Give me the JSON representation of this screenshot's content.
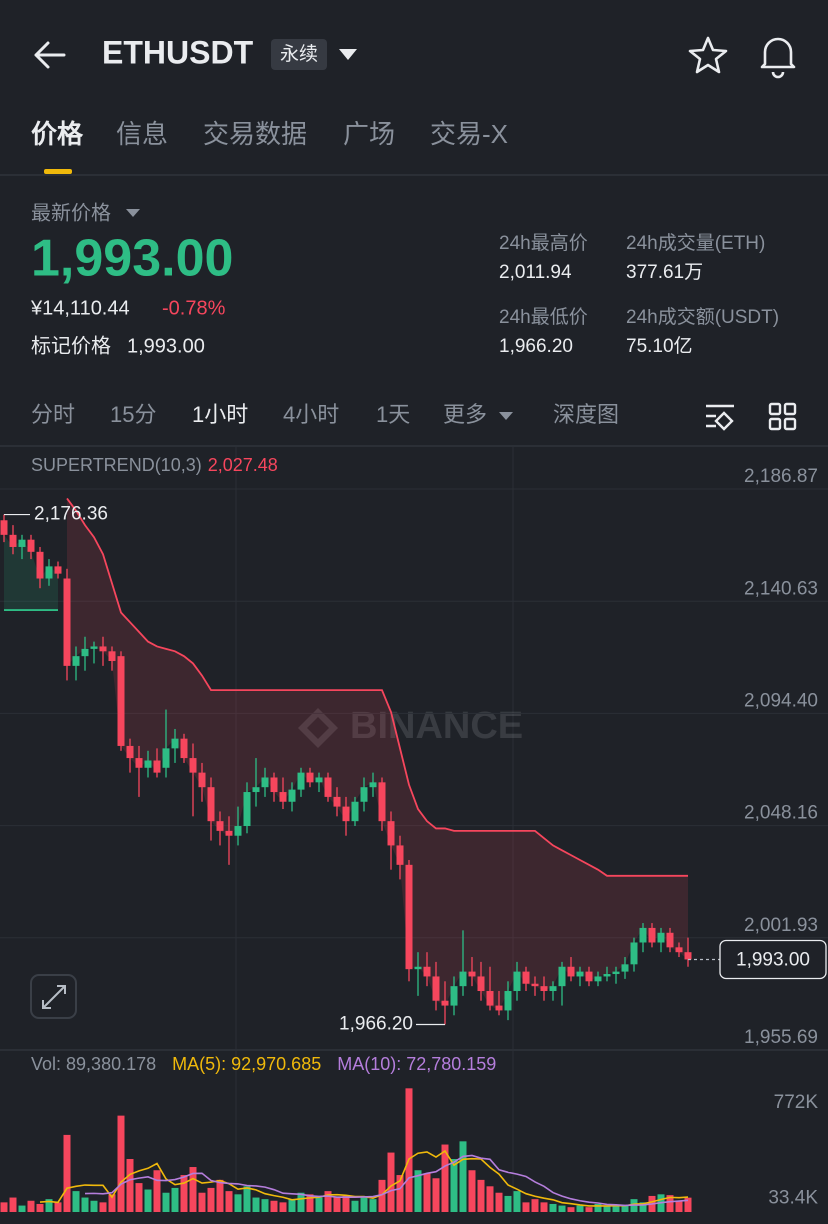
{
  "header": {
    "title": "ETHUSDT",
    "badge": "永续"
  },
  "tabs": [
    "价格",
    "信息",
    "交易数据",
    "广场",
    "交易-X"
  ],
  "price": {
    "label": "最新价格",
    "last": "1,993.00",
    "cny": "¥14,110.44",
    "change": "-0.78%",
    "mark_label": "标记价格",
    "mark": "1,993.00"
  },
  "stats": [
    {
      "label": "24h最高价",
      "value": "2,011.94"
    },
    {
      "label": "24h成交量(ETH)",
      "value": "377.61万"
    },
    {
      "label": "24h最低价",
      "value": "1,966.20"
    },
    {
      "label": "24h成交额(USDT)",
      "value": "75.10亿"
    }
  ],
  "timeframes": [
    "分时",
    "15分",
    "1小时",
    "4小时",
    "1天",
    "更多",
    "深度图"
  ],
  "watermark": "BINANCE",
  "chart_data": {
    "type": "candlestick",
    "up_color": "#2ebd85",
    "down_color": "#f6465d",
    "ylim": [
      1955.69,
      2204.2
    ],
    "yticks": [
      {
        "value": 2186.87,
        "label": "2,186.87"
      },
      {
        "value": 2140.63,
        "label": "2,140.63"
      },
      {
        "value": 2094.4,
        "label": "2,094.40"
      },
      {
        "value": 2048.16,
        "label": "2,048.16"
      },
      {
        "value": 2001.93,
        "label": "2,001.93"
      },
      {
        "value": 1955.69,
        "label": "1,955.69"
      }
    ],
    "grid": true,
    "candles": {
      "open": [
        2174,
        2168,
        2163,
        2166,
        2161,
        2150,
        2155,
        2150,
        2114,
        2118,
        2121,
        2122,
        2120,
        2118,
        2081,
        2076,
        2072,
        2075,
        2072,
        2080,
        2084,
        2076,
        2070,
        2064,
        2050,
        2046,
        2044,
        2048,
        2062,
        2064,
        2068,
        2062,
        2058,
        2063,
        2070,
        2066,
        2068,
        2060,
        2056,
        2050,
        2058,
        2064,
        2066,
        2050,
        2040,
        2032,
        1989,
        1990,
        1986,
        1976,
        1974,
        1982,
        1988,
        1986,
        1980,
        1974,
        1972,
        1980,
        1988,
        1983,
        1982,
        1980,
        1982,
        1990,
        1986,
        1988,
        1984,
        1986,
        1987,
        1988,
        1991,
        2000,
        2006,
        2000,
        2004,
        1998,
        1996
      ],
      "high": [
        2176.36,
        2172,
        2168,
        2168,
        2163,
        2158,
        2157,
        2154,
        2122,
        2126,
        2124,
        2126,
        2122,
        2120,
        2084,
        2081,
        2079,
        2080,
        2096,
        2088,
        2086,
        2082,
        2074,
        2068,
        2054,
        2052,
        2056,
        2066,
        2076,
        2072,
        2070,
        2068,
        2066,
        2072,
        2072,
        2070,
        2070,
        2064,
        2060,
        2060,
        2068,
        2070,
        2068,
        2054,
        2044,
        2034,
        1996,
        1996,
        1992,
        1984,
        1986,
        2005,
        1994,
        1992,
        1990,
        1980,
        1984,
        1992,
        1990,
        1986,
        1986,
        1984,
        1992,
        1994,
        1990,
        1990,
        1988,
        1990,
        1990,
        1994,
        2002,
        2008,
        2008,
        2006,
        2006,
        2000,
        2002
      ],
      "low": [
        2165,
        2160,
        2158,
        2158,
        2146,
        2147,
        2150,
        2108,
        2108,
        2112,
        2115,
        2114,
        2112,
        2079,
        2070,
        2060,
        2068,
        2068,
        2068,
        2074,
        2074,
        2052,
        2058,
        2042,
        2040,
        2032,
        2040,
        2045,
        2056,
        2060,
        2058,
        2055,
        2054,
        2060,
        2064,
        2062,
        2058,
        2052,
        2044,
        2048,
        2054,
        2060,
        2046,
        2030,
        2026,
        1984,
        1978,
        1982,
        1972,
        1966.2,
        1970,
        1978,
        1982,
        1976,
        1972,
        1970,
        1968,
        1976,
        1980,
        1978,
        1976,
        1976,
        1974,
        1984,
        1982,
        1982,
        1982,
        1984,
        1983,
        1985,
        1988,
        1996,
        1998,
        1996,
        1996,
        1994,
        1990
      ],
      "close": [
        2168,
        2163,
        2166,
        2161,
        2150,
        2155,
        2152,
        2114,
        2118,
        2121,
        2122,
        2120,
        2116,
        2081,
        2076,
        2072,
        2075,
        2070,
        2080,
        2084,
        2076,
        2070,
        2064,
        2050,
        2046,
        2044,
        2048,
        2062,
        2064,
        2068,
        2062,
        2058,
        2063,
        2070,
        2066,
        2068,
        2060,
        2056,
        2050,
        2058,
        2064,
        2066,
        2050,
        2040,
        2032,
        1989,
        1990,
        1986,
        1976,
        1974,
        1982,
        1988,
        1986,
        1980,
        1974,
        1972,
        1980,
        1988,
        1983,
        1982,
        1980,
        1982,
        1990,
        1986,
        1988,
        1984,
        1986,
        1987,
        1988,
        1991,
        2000,
        2006,
        2000,
        2004,
        1998,
        1996,
        1993
      ]
    },
    "supertrend": {
      "name": "SUPERTREND(10,3)",
      "value_label": "2,027.48",
      "values": [
        2137,
        2137,
        2137,
        2137,
        2137,
        2137,
        2137,
        2183,
        2178,
        2172,
        2167,
        2160,
        2148,
        2136,
        2132,
        2128,
        2124,
        2122,
        2121,
        2120,
        2118,
        2115,
        2110,
        2104,
        2104,
        2104,
        2104,
        2104,
        2104,
        2104,
        2104,
        2104,
        2104,
        2104,
        2104,
        2104,
        2104,
        2104,
        2104,
        2104,
        2104,
        2104,
        2104,
        2095,
        2080,
        2065,
        2055,
        2050,
        2047,
        2047,
        2046,
        2046,
        2046,
        2046,
        2046,
        2046,
        2046,
        2046,
        2046,
        2046,
        2043,
        2040,
        2038,
        2036,
        2034,
        2032,
        2030,
        2027.48,
        2027.48,
        2027.48,
        2027.48,
        2027.48,
        2027.48,
        2027.48,
        2027.48,
        2027.48,
        2027.48
      ]
    },
    "last_price": {
      "value": 1993,
      "label": "1,993.00"
    },
    "annotations": [
      {
        "value": 2176.36,
        "label": "2,176.36"
      },
      {
        "value": 1966.2,
        "label": "1,966.20"
      }
    ],
    "volume": {
      "name": "Vol:",
      "value_label": "89,380.178",
      "values": [
        60000,
        90000,
        40000,
        70000,
        50000,
        80000,
        60000,
        480000,
        130000,
        90000,
        70000,
        60000,
        110000,
        600000,
        330000,
        180000,
        140000,
        260000,
        120000,
        150000,
        230000,
        280000,
        120000,
        150000,
        200000,
        130000,
        110000,
        160000,
        90000,
        80000,
        70000,
        60000,
        80000,
        120000,
        110000,
        90000,
        130000,
        90000,
        100000,
        70000,
        90000,
        80000,
        200000,
        370000,
        230000,
        770000,
        260000,
        240000,
        210000,
        420000,
        330000,
        440000,
        260000,
        200000,
        160000,
        120000,
        100000,
        130000,
        60000,
        80000,
        60000,
        50000,
        40000,
        30000,
        40000,
        30000,
        50000,
        40000,
        35000,
        40000,
        80000,
        60000,
        100000,
        110000,
        105000,
        70000,
        89380.178
      ]
    },
    "volume_ma": [
      {
        "name": "MA(5):",
        "value_label": "92,970.685",
        "color": "#f0b90b",
        "values": [
          null,
          null,
          null,
          null,
          62000,
          66000,
          60000,
          148000,
          160000,
          168000,
          166000,
          166000,
          92000,
          186000,
          234000,
          256000,
          272000,
          302000,
          206000,
          170000,
          180000,
          208000,
          180000,
          186000,
          196000,
          176000,
          142000,
          150000,
          138000,
          114000,
          102000,
          92000,
          76000,
          82000,
          88000,
          92000,
          106000,
          108000,
          104000,
          96000,
          96000,
          86000,
          108000,
          162000,
          194000,
          330000,
          366000,
          374000,
          342000,
          380000,
          292000,
          328000,
          332000,
          330000,
          278000,
          236000,
          168000,
          142000,
          114000,
          98000,
          86000,
          76000,
          58000,
          52000,
          44000,
          38000,
          38000,
          38000,
          39000,
          39000,
          49000,
          51000,
          63000,
          78000,
          91000,
          89000,
          92970.685
        ]
      },
      {
        "name": "MA(10):",
        "value_label": "72,780.159",
        "color": "#b57edc",
        "values": [
          null,
          null,
          null,
          null,
          null,
          null,
          null,
          null,
          null,
          115000,
          116000,
          113000,
          120000,
          173000,
          201000,
          211000,
          219000,
          197000,
          196000,
          202000,
          218000,
          240000,
          241000,
          196000,
          183000,
          178000,
          175000,
          165000,
          162000,
          155000,
          139000,
          117000,
          113000,
          110000,
          101000,
          97000,
          99000,
          92000,
          93000,
          92000,
          94000,
          96000,
          108000,
          133000,
          145000,
          213000,
          226000,
          241000,
          251000,
          286000,
          310000,
          346000,
          352000,
          335000,
          328000,
          263000,
          247000,
          236000,
          221000,
          187000,
          160000,
          121000,
          99000,
          82000,
          70000,
          61000,
          56000,
          47000,
          45000,
          41000,
          43000,
          44000,
          50000,
          58000,
          64000,
          68000,
          72780.159
        ]
      }
    ],
    "vlim": [
      0,
      772000
    ],
    "vticks": [
      {
        "value": 772000,
        "label": "772K"
      },
      {
        "value": 33400,
        "label": "33.4K"
      }
    ]
  }
}
